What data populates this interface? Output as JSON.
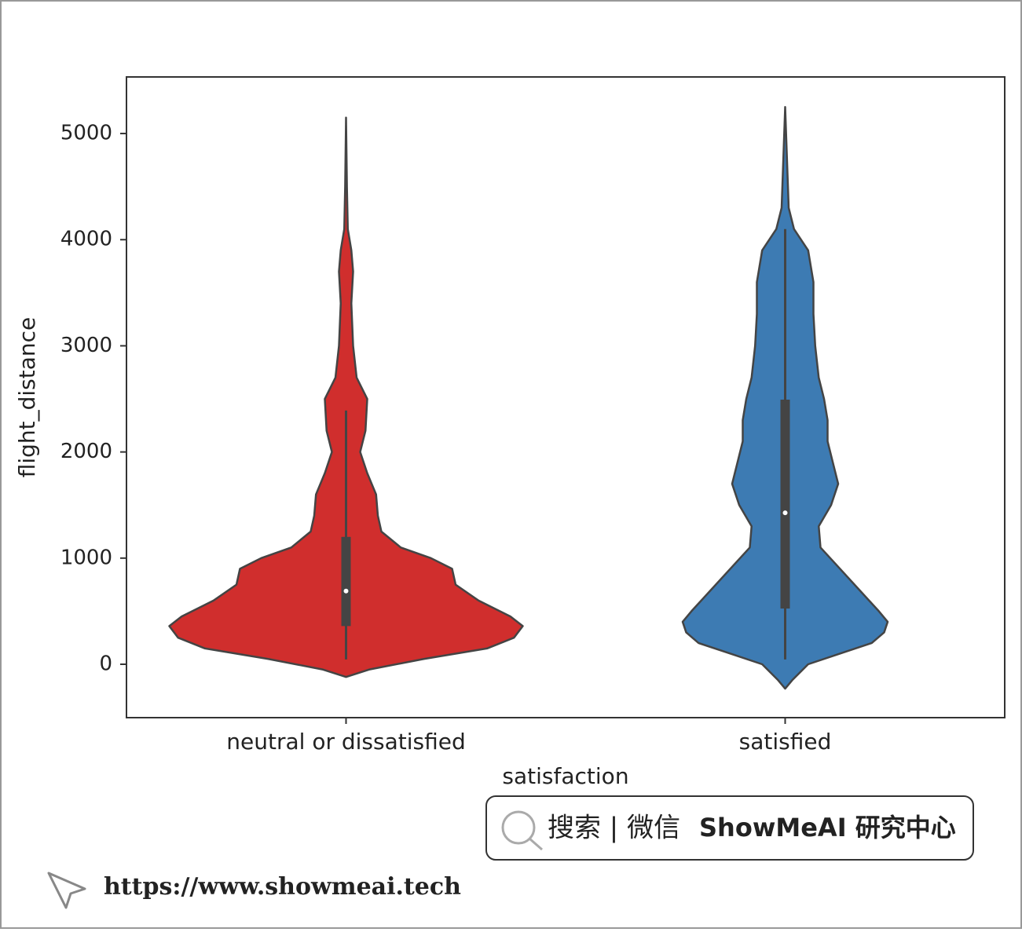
{
  "chart_data": {
    "type": "violin",
    "xlabel": "satisfaction",
    "ylabel": "flight_distance",
    "ylim": [
      -503,
      5533
    ],
    "yticks": [
      0,
      1000,
      2000,
      3000,
      4000,
      5000
    ],
    "categories": [
      "neutral or dissatisfied",
      "satisfied"
    ],
    "series": [
      {
        "color": "#d02e2d",
        "y": [
          -120,
          -50,
          50,
          150,
          250,
          360,
          450,
          600,
          750,
          900,
          1000,
          1100,
          1250,
          1400,
          1600,
          1800,
          2000,
          2200,
          2500,
          2700,
          3000,
          3400,
          3700,
          3900,
          4100,
          4500,
          5150
        ],
        "width": [
          0,
          0.13,
          0.44,
          0.8,
          0.95,
          1,
          0.93,
          0.75,
          0.62,
          0.6,
          0.48,
          0.31,
          0.2,
          0.18,
          0.17,
          0.12,
          0.08,
          0.11,
          0.12,
          0.06,
          0.04,
          0.03,
          0.04,
          0.03,
          0.01,
          0.005,
          0
        ],
        "whisker": [
          45,
          2390
        ],
        "q1": 360,
        "median": 690,
        "q3": 1200
      },
      {
        "color": "#3d7bb3",
        "y": [
          -230,
          -150,
          0,
          100,
          200,
          300,
          400,
          500,
          700,
          900,
          1100,
          1300,
          1500,
          1700,
          1900,
          2100,
          2300,
          2500,
          2700,
          3000,
          3300,
          3600,
          3900,
          4100,
          4300,
          5250
        ],
        "width": [
          0,
          0.04,
          0.13,
          0.31,
          0.49,
          0.56,
          0.58,
          0.53,
          0.42,
          0.31,
          0.2,
          0.19,
          0.26,
          0.3,
          0.27,
          0.24,
          0.24,
          0.22,
          0.19,
          0.17,
          0.16,
          0.16,
          0.13,
          0.05,
          0.02,
          0
        ],
        "whisker": [
          45,
          4100
        ],
        "q1": 525,
        "median": 1427,
        "q3": 2493
      }
    ]
  },
  "watermark": {
    "search": "搜索 | 微信",
    "brand": "ShowMeAI 研究中心",
    "url": "https://www.showmeai.tech"
  }
}
